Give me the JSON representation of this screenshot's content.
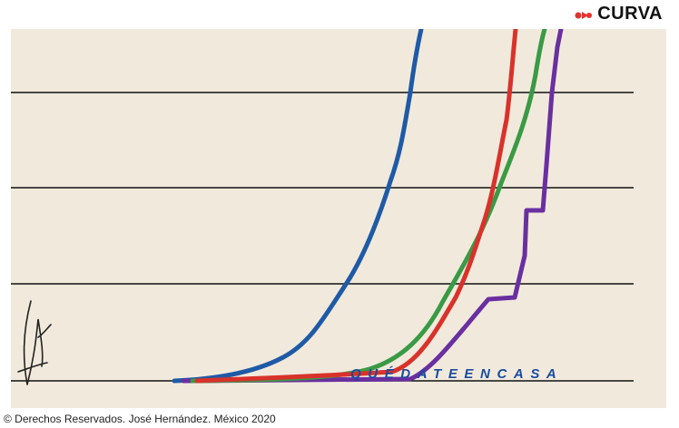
{
  "brand": {
    "name": "CURVA",
    "icon": "curve-logo-icon",
    "color": "#e5322d"
  },
  "artwork": {
    "slogan": "QUÉDATEENCASA",
    "colors": {
      "paper": "#f1eadc",
      "gridlines": "#111111",
      "blue": "#1f5aa6",
      "red": "#d9322b",
      "green": "#3a9a45",
      "purple": "#6a2fa0",
      "slogan": "#1a4a9e"
    }
  },
  "caption": "© Derechos Reservados. José Hernández. México 2020"
}
